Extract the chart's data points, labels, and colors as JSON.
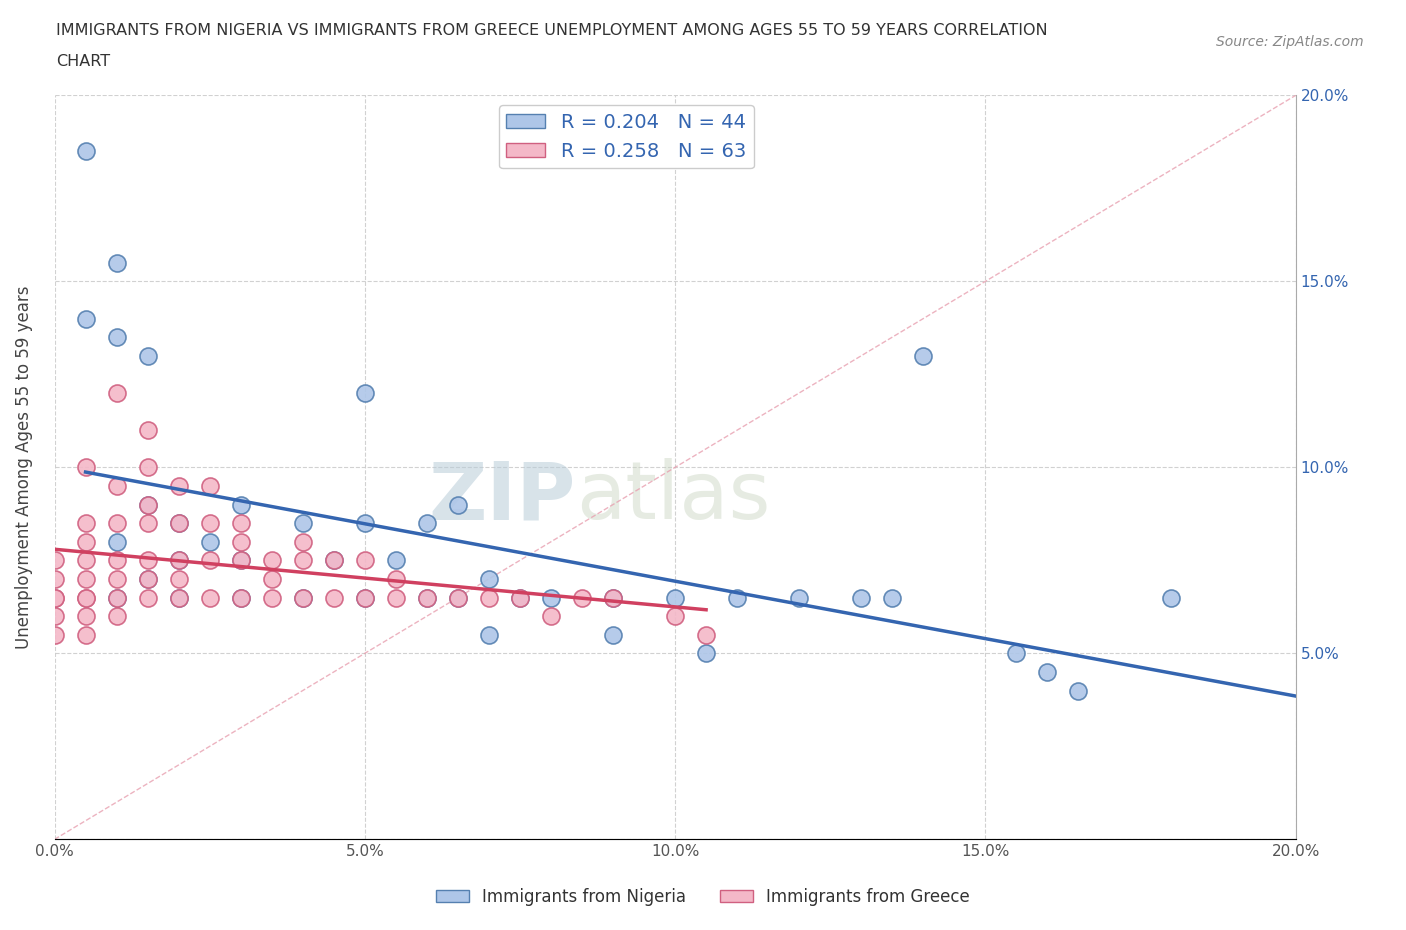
{
  "title_line1": "IMMIGRANTS FROM NIGERIA VS IMMIGRANTS FROM GREECE UNEMPLOYMENT AMONG AGES 55 TO 59 YEARS CORRELATION",
  "title_line2": "CHART",
  "source": "Source: ZipAtlas.com",
  "ylabel": "Unemployment Among Ages 55 to 59 years",
  "xlim": [
    0.0,
    0.2
  ],
  "ylim": [
    0.0,
    0.2
  ],
  "xticks": [
    0.0,
    0.05,
    0.1,
    0.15,
    0.2
  ],
  "yticks": [
    0.05,
    0.1,
    0.15,
    0.2
  ],
  "xticklabels": [
    "0.0%",
    "5.0%",
    "10.0%",
    "15.0%",
    "20.0%"
  ],
  "yticklabels_right": [
    "5.0%",
    "10.0%",
    "15.0%",
    "20.0%"
  ],
  "nigeria_color": "#aec6e8",
  "greece_color": "#f4b8c8",
  "nigeria_edge": "#5580b0",
  "greece_edge": "#d06080",
  "trendline_nigeria_color": "#3465b0",
  "trendline_greece_color": "#d04060",
  "R_nigeria": 0.204,
  "N_nigeria": 44,
  "R_greece": 0.258,
  "N_greece": 63,
  "nigeria_x": [
    0.005,
    0.005,
    0.01,
    0.01,
    0.01,
    0.01,
    0.015,
    0.015,
    0.015,
    0.02,
    0.02,
    0.02,
    0.025,
    0.03,
    0.03,
    0.03,
    0.04,
    0.04,
    0.045,
    0.05,
    0.05,
    0.05,
    0.055,
    0.06,
    0.06,
    0.065,
    0.065,
    0.07,
    0.07,
    0.075,
    0.08,
    0.09,
    0.09,
    0.1,
    0.105,
    0.11,
    0.12,
    0.13,
    0.135,
    0.14,
    0.155,
    0.16,
    0.165,
    0.18
  ],
  "nigeria_y": [
    0.185,
    0.14,
    0.155,
    0.135,
    0.08,
    0.065,
    0.13,
    0.09,
    0.07,
    0.085,
    0.075,
    0.065,
    0.08,
    0.09,
    0.075,
    0.065,
    0.085,
    0.065,
    0.075,
    0.12,
    0.085,
    0.065,
    0.075,
    0.085,
    0.065,
    0.09,
    0.065,
    0.07,
    0.055,
    0.065,
    0.065,
    0.065,
    0.055,
    0.065,
    0.05,
    0.065,
    0.065,
    0.065,
    0.065,
    0.13,
    0.05,
    0.045,
    0.04,
    0.065
  ],
  "greece_x": [
    0.0,
    0.0,
    0.0,
    0.0,
    0.0,
    0.0,
    0.005,
    0.005,
    0.005,
    0.005,
    0.005,
    0.005,
    0.005,
    0.005,
    0.005,
    0.01,
    0.01,
    0.01,
    0.01,
    0.01,
    0.01,
    0.01,
    0.015,
    0.015,
    0.015,
    0.015,
    0.015,
    0.015,
    0.015,
    0.02,
    0.02,
    0.02,
    0.02,
    0.02,
    0.025,
    0.025,
    0.025,
    0.025,
    0.03,
    0.03,
    0.03,
    0.03,
    0.035,
    0.035,
    0.035,
    0.04,
    0.04,
    0.04,
    0.045,
    0.045,
    0.05,
    0.05,
    0.055,
    0.055,
    0.06,
    0.065,
    0.07,
    0.075,
    0.08,
    0.085,
    0.09,
    0.1,
    0.105
  ],
  "greece_y": [
    0.075,
    0.07,
    0.065,
    0.065,
    0.06,
    0.055,
    0.1,
    0.085,
    0.08,
    0.075,
    0.07,
    0.065,
    0.065,
    0.06,
    0.055,
    0.12,
    0.095,
    0.085,
    0.075,
    0.07,
    0.065,
    0.06,
    0.11,
    0.1,
    0.09,
    0.085,
    0.075,
    0.07,
    0.065,
    0.095,
    0.085,
    0.075,
    0.07,
    0.065,
    0.095,
    0.085,
    0.075,
    0.065,
    0.085,
    0.08,
    0.075,
    0.065,
    0.075,
    0.07,
    0.065,
    0.08,
    0.075,
    0.065,
    0.075,
    0.065,
    0.075,
    0.065,
    0.07,
    0.065,
    0.065,
    0.065,
    0.065,
    0.065,
    0.06,
    0.065,
    0.065,
    0.06,
    0.055
  ],
  "watermark_zip": "ZIP",
  "watermark_atlas": "atlas",
  "background_color": "#ffffff",
  "grid_color": "#cccccc"
}
